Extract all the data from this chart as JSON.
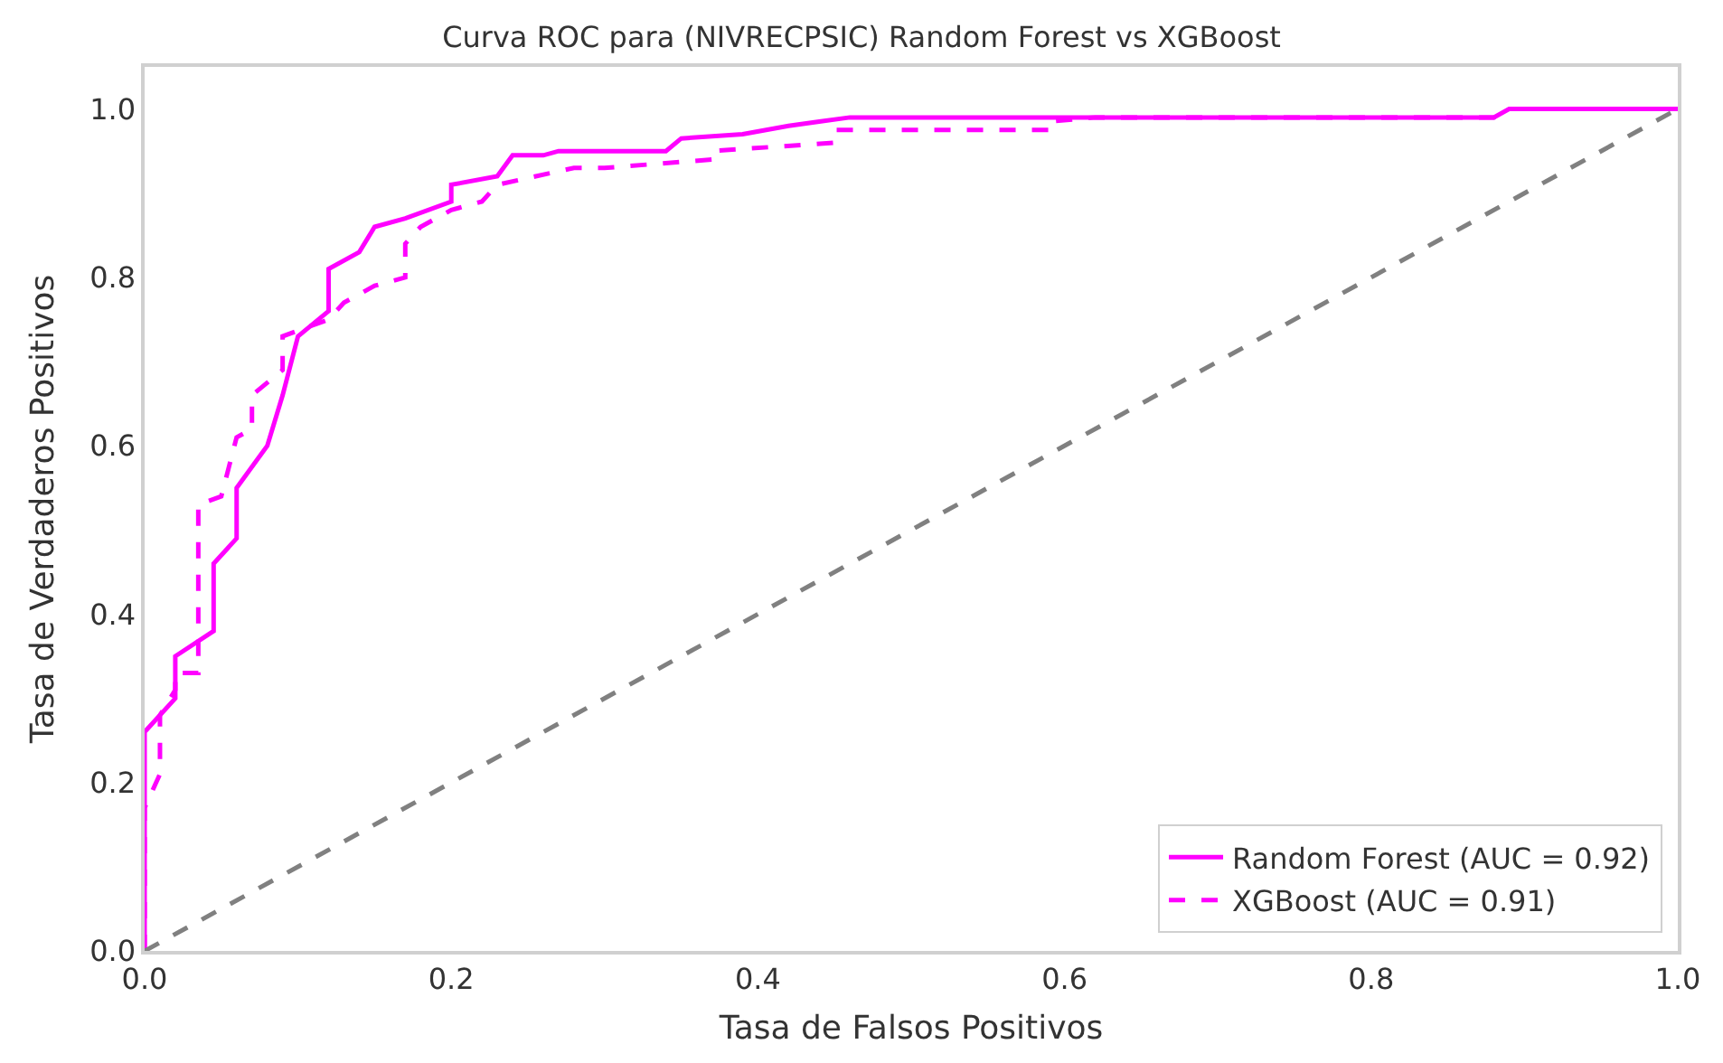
{
  "chart_data": {
    "type": "line",
    "title": "Curva ROC para (NIVRECPSIC) Random Forest vs XGBoost",
    "xlabel": "Tasa de Falsos Positivos",
    "ylabel": "Tasa de Verdaderos Positivos",
    "xlim": [
      0,
      1
    ],
    "ylim": [
      0,
      1.05
    ],
    "xticks": [
      {
        "value": 0,
        "label": "0.0"
      },
      0.2,
      0.4,
      0.6,
      0.8,
      {
        "value": 1,
        "label": "1.0"
      }
    ],
    "yticks": [
      {
        "value": 0,
        "label": "0.0"
      },
      0.2,
      0.4,
      0.6,
      0.8,
      {
        "value": 1,
        "label": "1.0"
      }
    ],
    "legend": "bottom right",
    "marker": "none",
    "series": [
      {
        "name": "Random Forest (AUC = 0.92)",
        "color": "#ff00ff",
        "line_style": "solid",
        "x": [
          0,
          0,
          0.02,
          0.02,
          0.045,
          0.045,
          0.06,
          0.06,
          0.08,
          0.09,
          0.1,
          0.12,
          0.12,
          0.14,
          0.15,
          0.17,
          0.2,
          0.2,
          0.23,
          0.24,
          0.26,
          0.27,
          0.34,
          0.35,
          0.39,
          0.42,
          0.44,
          0.46,
          0.88,
          0.89,
          1
        ],
        "values": [
          0,
          0.26,
          0.3,
          0.35,
          0.38,
          0.46,
          0.49,
          0.55,
          0.6,
          0.66,
          0.73,
          0.76,
          0.81,
          0.83,
          0.86,
          0.87,
          0.89,
          0.91,
          0.92,
          0.945,
          0.945,
          0.95,
          0.95,
          0.965,
          0.97,
          0.98,
          0.985,
          0.99,
          0.99,
          1,
          1
        ]
      },
      {
        "name": "XGBoost (AUC = 0.91)",
        "color": "#ff00ff",
        "line_style": "dashed",
        "x": [
          0,
          0,
          0.01,
          0.01,
          0.02,
          0.02,
          0.035,
          0.035,
          0.05,
          0.06,
          0.07,
          0.07,
          0.09,
          0.09,
          0.12,
          0.13,
          0.15,
          0.17,
          0.17,
          0.18,
          0.2,
          0.22,
          0.23,
          0.28,
          0.3,
          0.37,
          0.37,
          0.45,
          0.45,
          0.59,
          0.59,
          0.62,
          0.88,
          0.89,
          1
        ],
        "values": [
          0,
          0.17,
          0.21,
          0.28,
          0.31,
          0.33,
          0.33,
          0.53,
          0.54,
          0.61,
          0.62,
          0.66,
          0.69,
          0.73,
          0.75,
          0.77,
          0.79,
          0.8,
          0.84,
          0.86,
          0.88,
          0.89,
          0.91,
          0.93,
          0.93,
          0.94,
          0.95,
          0.96,
          0.975,
          0.975,
          0.985,
          0.99,
          0.99,
          1,
          1
        ]
      },
      {
        "color": "#808080",
        "line_style": "dashed",
        "x": [
          0,
          1
        ],
        "values": [
          0,
          1
        ]
      }
    ]
  }
}
